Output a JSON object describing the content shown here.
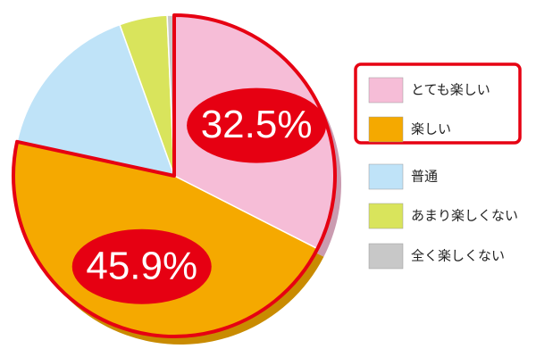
{
  "chart_data": {
    "type": "pie",
    "categories": [
      "とても楽しい",
      "楽しい",
      "普通",
      "あまり楽しくない",
      "全く楽しくない"
    ],
    "values": [
      32.5,
      45.9,
      16.1,
      4.8,
      0.7
    ],
    "value_labels": [
      "32.5%",
      "45.9%",
      null,
      null,
      null
    ],
    "colors": [
      "#f6bdd7",
      "#f5a900",
      "#bfe3f8",
      "#d9e45c",
      "#c8c8c8"
    ],
    "highlight_color": "#e60012"
  }
}
